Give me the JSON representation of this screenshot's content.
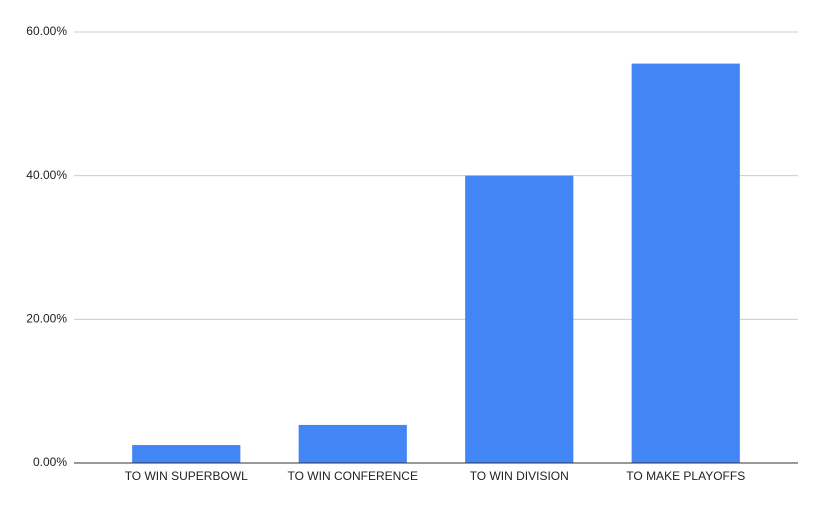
{
  "chart_data": {
    "type": "bar",
    "categories": [
      "TO WIN SUPERBOWL",
      "TO WIN CONFERENCE",
      "TO WIN DIVISION",
      "TO MAKE PLAYOFFS"
    ],
    "values": [
      2.5,
      5.3,
      40.0,
      55.6
    ],
    "color": "#4285f4",
    "ylim": [
      0,
      60
    ],
    "yticks": [
      {
        "value": 0,
        "label": "0.00%"
      },
      {
        "value": 20,
        "label": "20.00%"
      },
      {
        "value": 40,
        "label": "40.00%"
      },
      {
        "value": 60,
        "label": "60.00%"
      }
    ],
    "grid": true
  }
}
